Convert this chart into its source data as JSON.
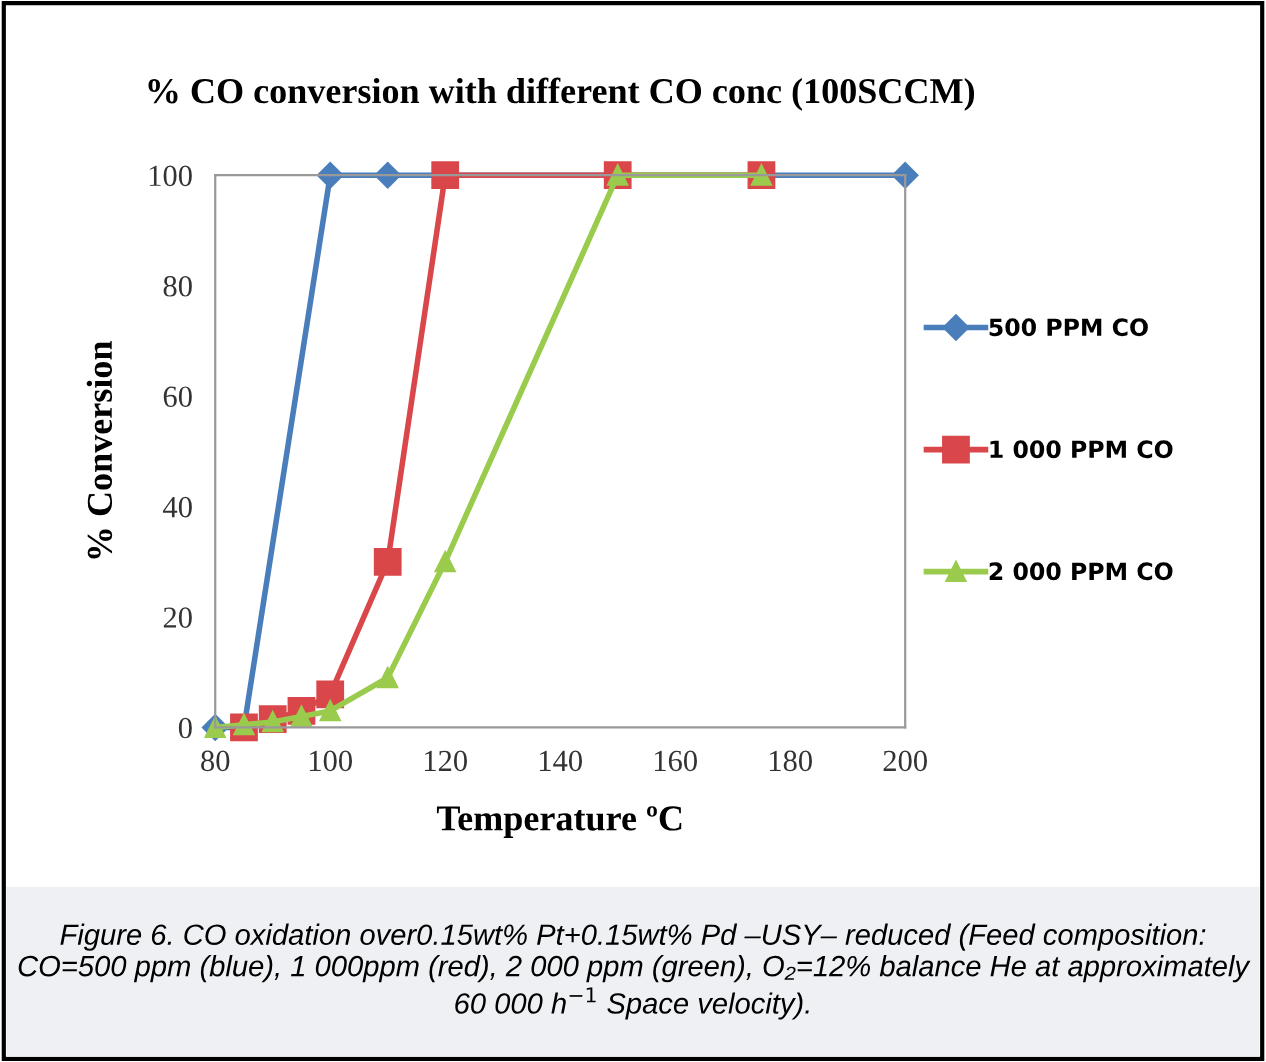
{
  "chart_data": {
    "type": "line",
    "title": "% CO conversion with different CO conc (100SCCM)",
    "xlabel": "Temperature ºC",
    "ylabel": "% Conversion",
    "xlim": [
      80,
      200
    ],
    "xticks": [
      80,
      100,
      120,
      140,
      160,
      180,
      200
    ],
    "ylim": [
      0,
      100
    ],
    "yticks": [
      0,
      20,
      40,
      60,
      80,
      100
    ],
    "legend": "right",
    "grid": false,
    "line_style": "solid",
    "series": [
      {
        "name": "500 PPM CO",
        "color": "#4a7ebb",
        "marker": "diamond",
        "x": [
          80,
          85,
          100,
          110,
          200
        ],
        "values": [
          0,
          0,
          100,
          100,
          100
        ]
      },
      {
        "name": "1 000 PPM CO",
        "color": "#d9474a",
        "marker": "square",
        "x": [
          85,
          90,
          95,
          100,
          110,
          120,
          150,
          175
        ],
        "values": [
          0,
          1.5,
          3,
          6,
          30,
          100,
          100,
          100
        ]
      },
      {
        "name": "2 000 PPM CO",
        "color": "#9acb4c",
        "marker": "triangle",
        "x": [
          80,
          85,
          90,
          95,
          100,
          110,
          120,
          150,
          175
        ],
        "values": [
          0,
          0.5,
          1,
          2,
          3,
          9,
          30,
          100,
          100
        ]
      }
    ],
    "annotations": [
      "Figure 6. CO oxidation over0.15wt% Pt+0.15wt% Pd –USY– reduced (Feed composition: CO=500 ppm (blue), 1 000ppm (red), 2 000 ppm (green), O₂=12% balance He at approximately 60 000 h$^{−1}$ Space velocity)."
    ]
  }
}
